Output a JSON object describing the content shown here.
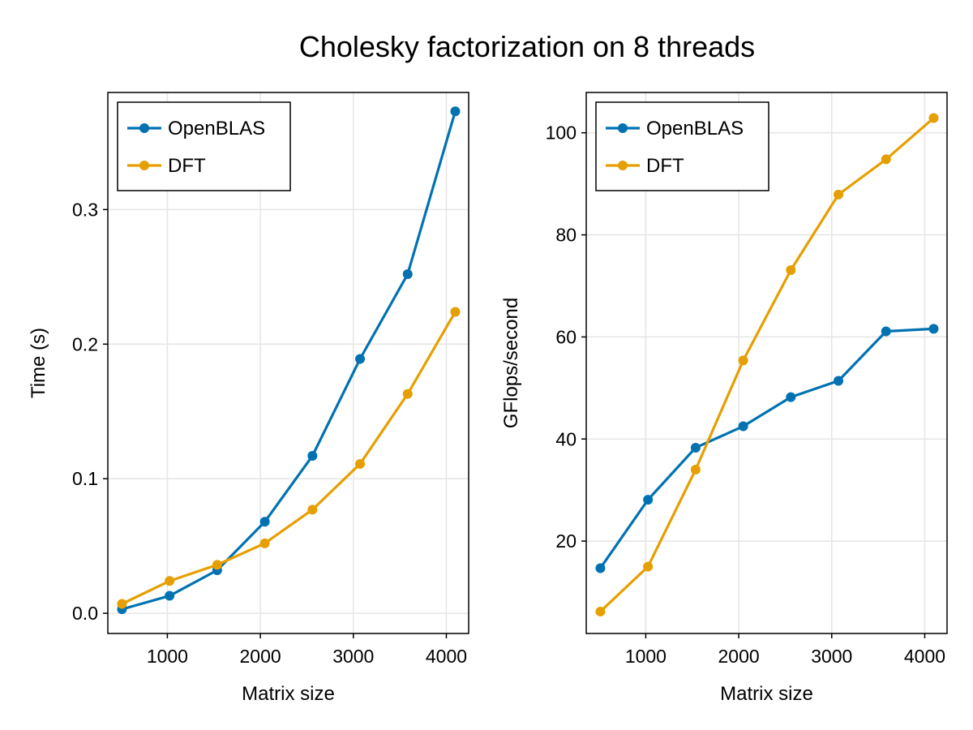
{
  "title": "Cholesky factorization on 8 threads",
  "colors": {
    "OpenBLAS": "#0072b2",
    "DFT": "#e69f00",
    "grid": "#e5e5e5",
    "axis": "#000000"
  },
  "chart_data": [
    {
      "type": "line",
      "xlabel": "Matrix size",
      "ylabel": "Time (s)",
      "xlim": [
        360,
        4240
      ],
      "ylim": [
        -0.015,
        0.387
      ],
      "xticks": [
        1000,
        2000,
        3000,
        4000
      ],
      "yticks": [
        0.0,
        0.1,
        0.2,
        0.3
      ],
      "xtick_labels": [
        "1000",
        "2000",
        "3000",
        "4000"
      ],
      "ytick_labels": [
        "0.0",
        "0.1",
        "0.2",
        "0.3"
      ],
      "grid": true,
      "legend_position": "top-left",
      "x": [
        512,
        1024,
        1536,
        2048,
        2560,
        3072,
        3584,
        4096
      ],
      "series": [
        {
          "name": "OpenBLAS",
          "values": [
            0.003,
            0.013,
            0.032,
            0.068,
            0.117,
            0.189,
            0.252,
            0.373
          ]
        },
        {
          "name": "DFT",
          "values": [
            0.007,
            0.024,
            0.036,
            0.052,
            0.077,
            0.111,
            0.163,
            0.224
          ]
        }
      ]
    },
    {
      "type": "line",
      "xlabel": "Matrix size",
      "ylabel": "GFlops/second",
      "xlim": [
        360,
        4240
      ],
      "ylim": [
        1.9,
        107.9
      ],
      "xticks": [
        1000,
        2000,
        3000,
        4000
      ],
      "yticks": [
        20,
        40,
        60,
        80,
        100
      ],
      "xtick_labels": [
        "1000",
        "2000",
        "3000",
        "4000"
      ],
      "ytick_labels": [
        "20",
        "40",
        "60",
        "80",
        "100"
      ],
      "grid": true,
      "legend_position": "top-left",
      "x": [
        512,
        1024,
        1536,
        2048,
        2560,
        3072,
        3584,
        4096
      ],
      "series": [
        {
          "name": "OpenBLAS",
          "values": [
            14.7,
            28.1,
            38.3,
            42.5,
            48.2,
            51.4,
            61.1,
            61.6
          ]
        },
        {
          "name": "DFT",
          "values": [
            6.2,
            15.0,
            34.0,
            55.4,
            73.1,
            87.9,
            94.8,
            102.9
          ]
        }
      ]
    }
  ]
}
